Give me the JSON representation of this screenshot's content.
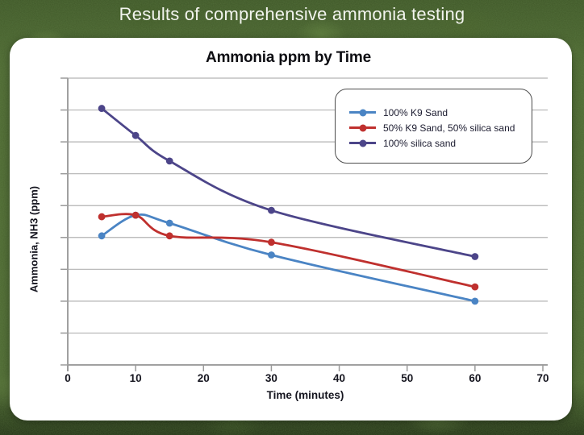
{
  "header": {
    "title": "Results of comprehensive ammonia testing"
  },
  "chart": {
    "title": "Ammonia ppm by Time",
    "x_axis_label": "Time (minutes)",
    "y_axis_label": "Ammonia, NH3 (ppm)"
  },
  "chart_data": {
    "type": "line",
    "title": "Ammonia ppm by Time",
    "xlabel": "Time (minutes)",
    "ylabel": "Ammonia, NH3 (ppm)",
    "x": [
      5,
      10,
      15,
      30,
      60
    ],
    "x_ticks": [
      "0",
      "10",
      "20",
      "30",
      "40",
      "50",
      "60",
      "70"
    ],
    "xlim": [
      0,
      70
    ],
    "ylim": [
      0,
      9
    ],
    "y_tick_interval": 1,
    "y_tick_labels_visible": false,
    "grid": "horizontal",
    "smooth_lines": true,
    "legend_position": "upper-right-inside",
    "series": [
      {
        "name": "100% K9 Sand",
        "color": "#4a84c4",
        "values": [
          4.05,
          4.7,
          4.45,
          3.45,
          2.0
        ]
      },
      {
        "name": "50% K9 Sand, 50% silica sand",
        "color": "#bf302e",
        "values": [
          4.65,
          4.7,
          4.05,
          3.85,
          2.45
        ]
      },
      {
        "name": "100% silica sand",
        "color": "#4c4589",
        "values": [
          8.05,
          7.2,
          6.4,
          4.85,
          3.4
        ]
      }
    ]
  },
  "colors": {
    "grass_green": "#4d6832",
    "card_background": "#ffffff",
    "gridline_gray": "#b3b3b3",
    "axis_gray": "#a0a0a0",
    "text_dark": "#15151f",
    "header_text": "#f2f4ee",
    "legend_border": "#4c4c4c"
  }
}
